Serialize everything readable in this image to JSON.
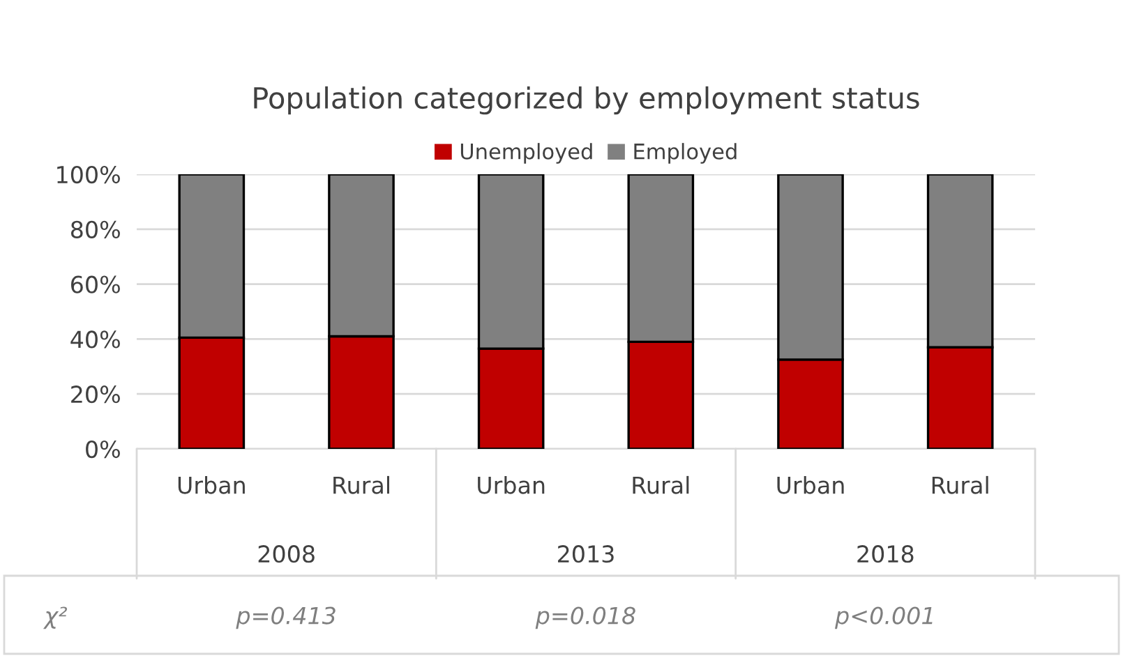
{
  "chart_data": {
    "type": "bar",
    "title": "Population categorized by employment status",
    "stacked": true,
    "categories": [
      "Urban",
      "Rural",
      "Urban",
      "Rural",
      "Urban",
      "Rural"
    ],
    "series": [
      {
        "name": "Unemployed",
        "color": "#c00000",
        "values": [
          40.5,
          41,
          36.5,
          39,
          32.5,
          37
        ]
      },
      {
        "name": "Employed",
        "color": "#808080",
        "values": [
          59.5,
          59,
          63.5,
          61,
          67.5,
          63
        ]
      }
    ],
    "ylim": [
      0,
      100
    ],
    "yticks": [
      {
        "value": 0,
        "label": "0%"
      },
      {
        "value": 20,
        "label": "20%"
      },
      {
        "value": 40,
        "label": "40%"
      },
      {
        "value": 60,
        "label": "60%"
      },
      {
        "value": 80,
        "label": "80%"
      },
      {
        "value": 100,
        "label": "100%"
      }
    ],
    "grid": "y",
    "legend": "top",
    "annotations": [
      "2008",
      "2013",
      "2018",
      "χ²",
      "p=0.413",
      "p=0.018",
      "p<0.001"
    ]
  }
}
